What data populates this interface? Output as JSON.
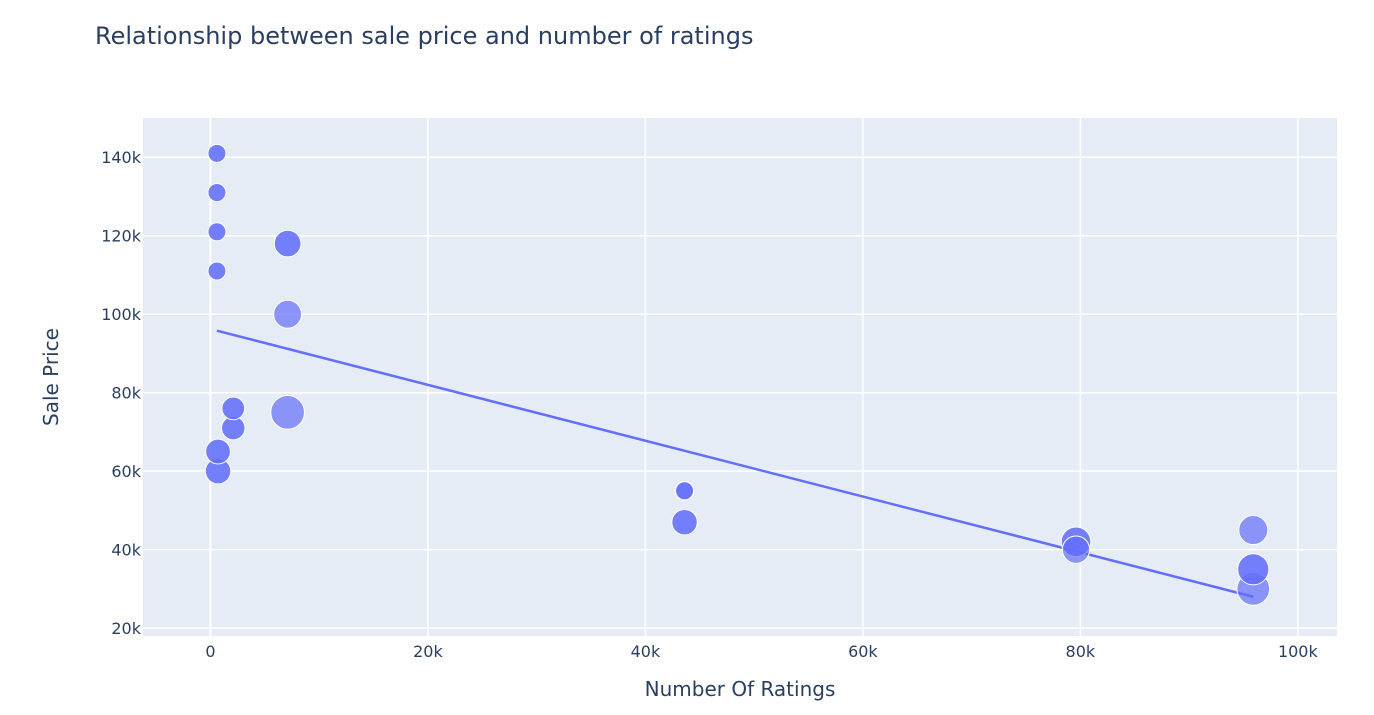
{
  "chart_data": {
    "type": "scatter",
    "title": "Relationship between sale price and number of ratings",
    "xlabel": "Number Of Ratings",
    "ylabel": "Sale Price",
    "xlim": [
      -6200,
      103600
    ],
    "ylim": [
      18000,
      150000
    ],
    "x_ticks": [
      0,
      20000,
      40000,
      60000,
      80000,
      100000
    ],
    "x_tick_labels": [
      "0",
      "20k",
      "40k",
      "60k",
      "80k",
      "100k"
    ],
    "y_ticks": [
      20000,
      40000,
      60000,
      80000,
      100000,
      120000,
      140000
    ],
    "y_tick_labels": [
      "20k",
      "40k",
      "60k",
      "80k",
      "100k",
      "120k",
      "140k"
    ],
    "grid": true,
    "colors": {
      "plot_bg": "#e5ecf6",
      "grid": "#ffffff",
      "marker": "#636efa",
      "trendline": "#636efa",
      "text": "#2a3f5f"
    },
    "points": [
      {
        "x": 600,
        "y": 141000,
        "size": 1,
        "opacity": 0.88
      },
      {
        "x": 600,
        "y": 131000,
        "size": 1,
        "opacity": 0.88
      },
      {
        "x": 600,
        "y": 121000,
        "size": 1,
        "opacity": 0.88
      },
      {
        "x": 600,
        "y": 111000,
        "size": 1,
        "opacity": 0.88
      },
      {
        "x": 7100,
        "y": 118000,
        "size": 2.2,
        "opacity": 0.88
      },
      {
        "x": 7100,
        "y": 100000,
        "size": 2.4,
        "opacity": 0.7
      },
      {
        "x": 7100,
        "y": 75000,
        "size": 3.5,
        "opacity": 0.7
      },
      {
        "x": 2100,
        "y": 76000,
        "size": 1.6,
        "opacity": 0.88
      },
      {
        "x": 2100,
        "y": 71000,
        "size": 1.7,
        "opacity": 0.88
      },
      {
        "x": 700,
        "y": 65000,
        "size": 1.9,
        "opacity": 0.88
      },
      {
        "x": 700,
        "y": 60000,
        "size": 2.0,
        "opacity": 0.88
      },
      {
        "x": 43600,
        "y": 55000,
        "size": 1.1,
        "opacity": 0.6
      },
      {
        "x": 43600,
        "y": 55000,
        "size": 1.0,
        "opacity": 0.88
      },
      {
        "x": 43600,
        "y": 47000,
        "size": 2.0,
        "opacity": 0.88
      },
      {
        "x": 79600,
        "y": 40000,
        "size": 2.3,
        "opacity": 0.7
      },
      {
        "x": 79600,
        "y": 42000,
        "size": 2.7,
        "opacity": 0.88
      },
      {
        "x": 95900,
        "y": 45000,
        "size": 2.6,
        "opacity": 0.7
      },
      {
        "x": 95900,
        "y": 35000,
        "size": 3.0,
        "opacity": 0.88
      },
      {
        "x": 95900,
        "y": 30000,
        "size": 3.3,
        "opacity": 0.7
      }
    ],
    "trendline": [
      {
        "x": 600,
        "y": 95800
      },
      {
        "x": 95900,
        "y": 28000
      }
    ]
  }
}
